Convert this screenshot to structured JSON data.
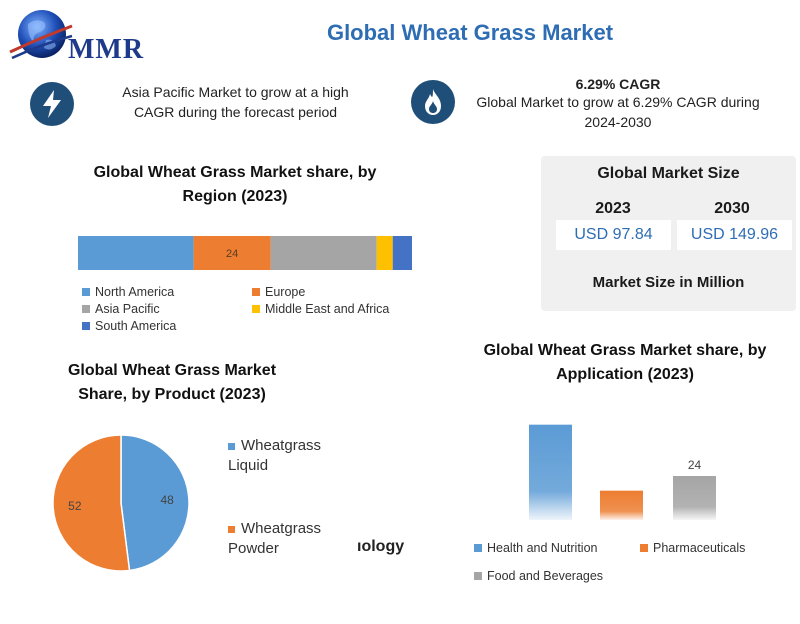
{
  "header": {
    "logo_text": "MMR",
    "title": "Global Wheat Grass Market"
  },
  "highlights": [
    {
      "icon": "lightning-icon",
      "bold": "",
      "text": "Asia Pacific Market to grow at a high CAGR during the forecast period"
    },
    {
      "icon": "flame-icon",
      "bold": "6.29% CAGR",
      "text": "Global Market to grow at 6.29% CAGR during 2024-2030"
    }
  ],
  "market_size": {
    "title": "Global Market Size",
    "year_a": "2023",
    "value_a": "USD 97.84",
    "year_b": "2030",
    "value_b": "USD 149.96",
    "footer": "Market Size in Million"
  },
  "truncated_text": "ıology",
  "colors": {
    "blue": "#5b9bd5",
    "orange": "#ed7d31",
    "gray": "#a5a5a5",
    "yellow": "#ffc000",
    "dark_blue": "#4472c4",
    "title_blue": "#2e6db4",
    "icon_navy": "#1f4e79"
  },
  "chart_data": [
    {
      "type": "bar",
      "orientation": "horizontal-stacked",
      "title": "Global Wheat Grass Market share, by Region (2023)",
      "series": [
        {
          "name": "North America",
          "value": 36,
          "label": ""
        },
        {
          "name": "Europe",
          "value": 24,
          "label": "24"
        },
        {
          "name": "Asia Pacific",
          "value": 33,
          "label": ""
        },
        {
          "name": "Middle East and Africa",
          "value": 5,
          "label": ""
        },
        {
          "name": "South America",
          "value": 6,
          "label": ""
        }
      ],
      "legend": "bottom"
    },
    {
      "type": "pie",
      "title": "Global Wheat Grass Market Share, by Product (2023)",
      "slices": [
        {
          "name": "Wheatgrass Liquid",
          "value": 48
        },
        {
          "name": "Wheatgrass Powder",
          "value": 52
        }
      ],
      "legend": "right"
    },
    {
      "type": "bar",
      "title": "Global Wheat Grass Market share, by Application (2023)",
      "categories": [
        "Health and Nutrition",
        "Pharmaceuticals",
        "Food and Beverages"
      ],
      "values": [
        52,
        16,
        24
      ],
      "data_labels": [
        "",
        "",
        "24"
      ],
      "ylim": [
        0,
        60
      ],
      "legend": "bottom"
    }
  ]
}
